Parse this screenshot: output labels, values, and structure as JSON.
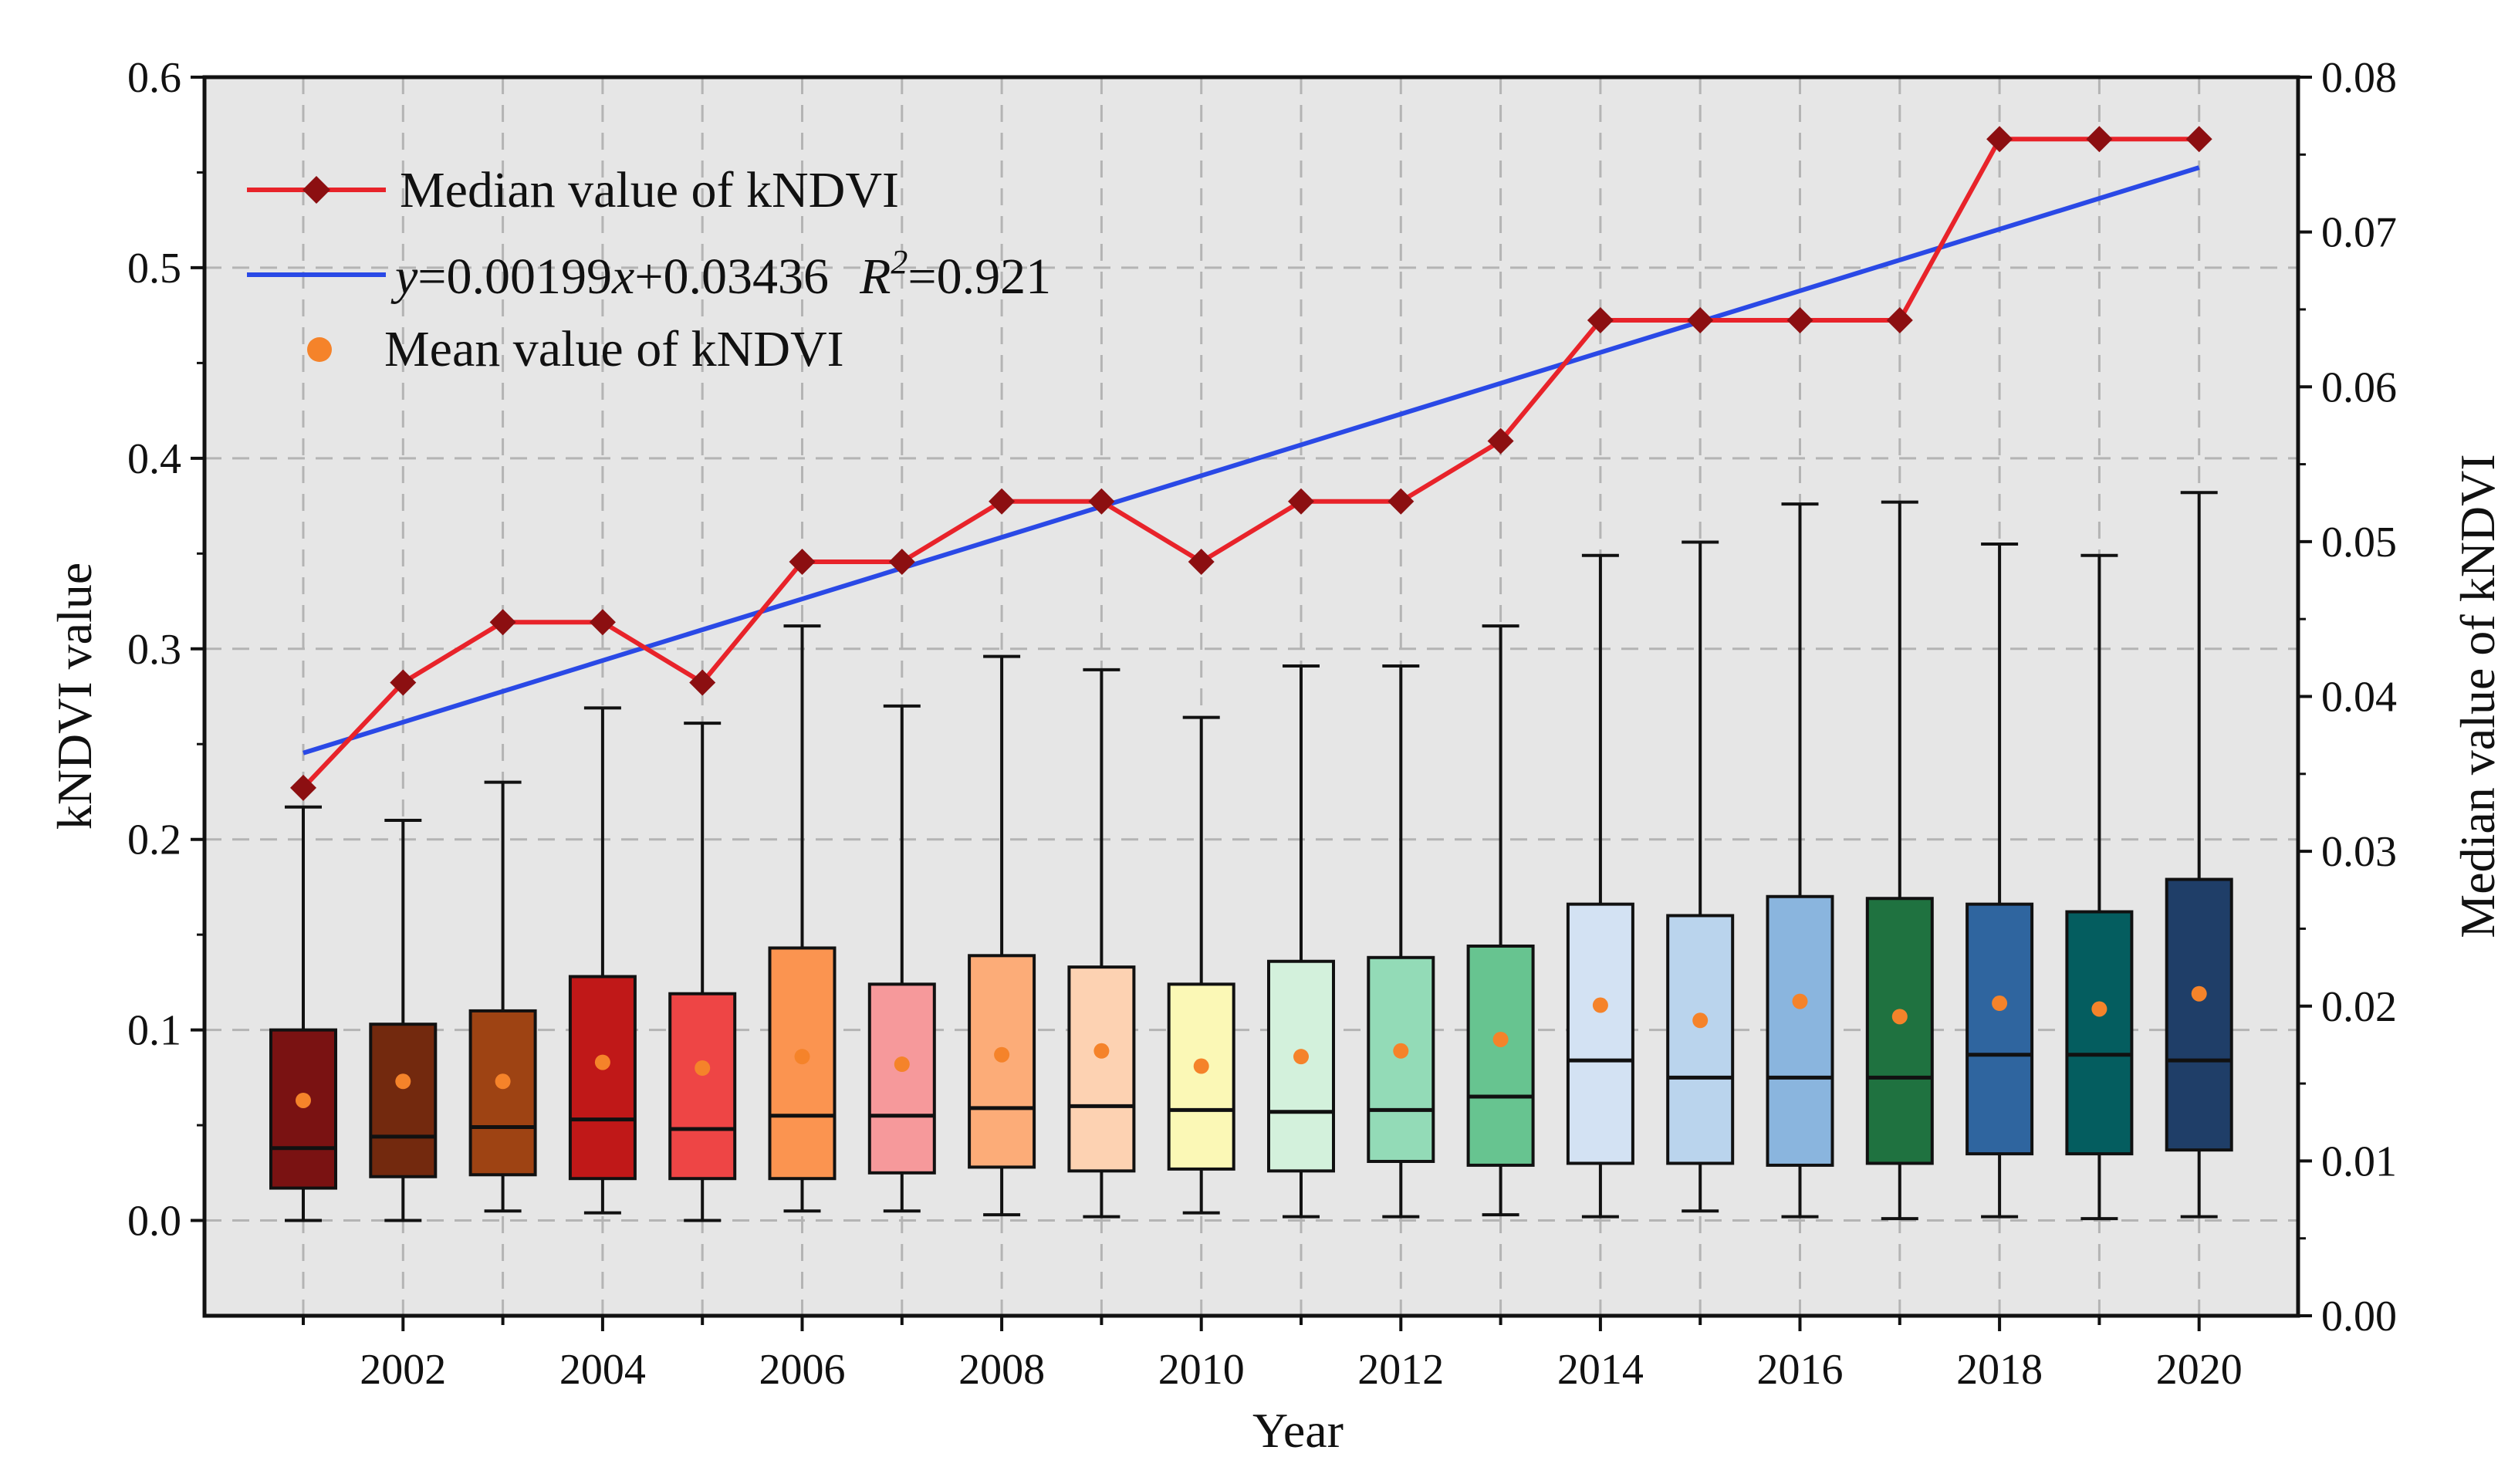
{
  "chart_data": {
    "type": "box",
    "xlabel": "Year",
    "ylabel": "kNDVI  value",
    "ylabel_right": "Median value of kNDVI",
    "ylim": [
      -0.05,
      0.6
    ],
    "ylim_right": [
      0.0,
      0.08
    ],
    "yticks": [
      "0.0",
      "0.1",
      "0.2",
      "0.3",
      "0.4",
      "0.5",
      "0.6"
    ],
    "yticks_right": [
      "0.00",
      "0.01",
      "0.02",
      "0.03",
      "0.04",
      "0.05",
      "0.06",
      "0.07",
      "0.08"
    ],
    "xticks": [
      "2002",
      "2004",
      "2006",
      "2008",
      "2010",
      "2012",
      "2014",
      "2016",
      "2018",
      "2020"
    ],
    "grid": true,
    "legend_position": "top-left",
    "legend": {
      "median_label": "Median value of kNDVI",
      "fit_y": "y",
      "fit_mid": "=0.00199",
      "fit_x": "x",
      "fit_tail": "+0.03436",
      "fit_r": "R",
      "fit_r_sup": "2",
      "fit_r_val": "=0.921",
      "mean_label": "Mean value of kNDVI"
    },
    "years": [
      2001,
      2002,
      2003,
      2004,
      2005,
      2006,
      2007,
      2008,
      2009,
      2010,
      2011,
      2012,
      2013,
      2014,
      2015,
      2016,
      2017,
      2018,
      2019,
      2020
    ],
    "boxes": {
      "whisker_low": [
        0.0,
        0.0,
        0.005,
        0.004,
        0.0,
        0.005,
        0.005,
        0.003,
        0.002,
        0.004,
        0.002,
        0.002,
        0.003,
        0.002,
        0.005,
        0.002,
        0.001,
        0.002,
        0.001,
        0.002
      ],
      "q1": [
        0.017,
        0.023,
        0.024,
        0.022,
        0.022,
        0.022,
        0.025,
        0.028,
        0.026,
        0.027,
        0.026,
        0.031,
        0.029,
        0.03,
        0.03,
        0.029,
        0.03,
        0.035,
        0.035,
        0.037
      ],
      "median": [
        0.038,
        0.044,
        0.049,
        0.053,
        0.048,
        0.055,
        0.055,
        0.059,
        0.06,
        0.058,
        0.057,
        0.058,
        0.065,
        0.084,
        0.075,
        0.075,
        0.075,
        0.087,
        0.087,
        0.084
      ],
      "q3": [
        0.1,
        0.103,
        0.11,
        0.128,
        0.119,
        0.143,
        0.124,
        0.139,
        0.133,
        0.124,
        0.136,
        0.138,
        0.144,
        0.166,
        0.16,
        0.17,
        0.169,
        0.166,
        0.162,
        0.179
      ],
      "whisker_high": [
        0.217,
        0.21,
        0.23,
        0.269,
        0.261,
        0.312,
        0.27,
        0.296,
        0.289,
        0.264,
        0.291,
        0.291,
        0.312,
        0.349,
        0.356,
        0.376,
        0.377,
        0.355,
        0.349,
        0.382
      ],
      "mean": [
        0.063,
        0.073,
        0.073,
        0.083,
        0.08,
        0.086,
        0.082,
        0.087,
        0.089,
        0.081,
        0.086,
        0.089,
        0.095,
        0.113,
        0.105,
        0.115,
        0.107,
        0.114,
        0.111,
        0.119
      ],
      "colors": [
        "#7a1212",
        "#73290e",
        "#9e4313",
        "#c01818",
        "#ee4545",
        "#fb9450",
        "#f6999b",
        "#fcac78",
        "#fdd2b2",
        "#fbf8b6",
        "#d3f1dc",
        "#93dbb7",
        "#67c490",
        "#d3e2f3",
        "#bad4ed",
        "#8ab5de",
        "#1f7240",
        "#2f659f",
        "#045d5f",
        "#1f3e68"
      ]
    },
    "median_series": [
      0.0341,
      0.0409,
      0.0448,
      0.0448,
      0.0409,
      0.0487,
      0.0487,
      0.0526,
      0.0526,
      0.0487,
      0.0526,
      0.0526,
      0.0565,
      0.0643,
      0.0643,
      0.0643,
      0.0643,
      0.076,
      0.076,
      0.076
    ],
    "fit": {
      "slope": 0.00199,
      "intercept": 0.03436,
      "r2": 0.921,
      "x_start": 1,
      "x_end": 20
    },
    "colors": {
      "median_line": "#e8232a",
      "median_marker": "#8c0f11",
      "fit_line": "#2a49e6",
      "mean_dot": "#f5832a",
      "plot_bg": "#e6e6e6",
      "grid": "#b4b4b4"
    }
  }
}
